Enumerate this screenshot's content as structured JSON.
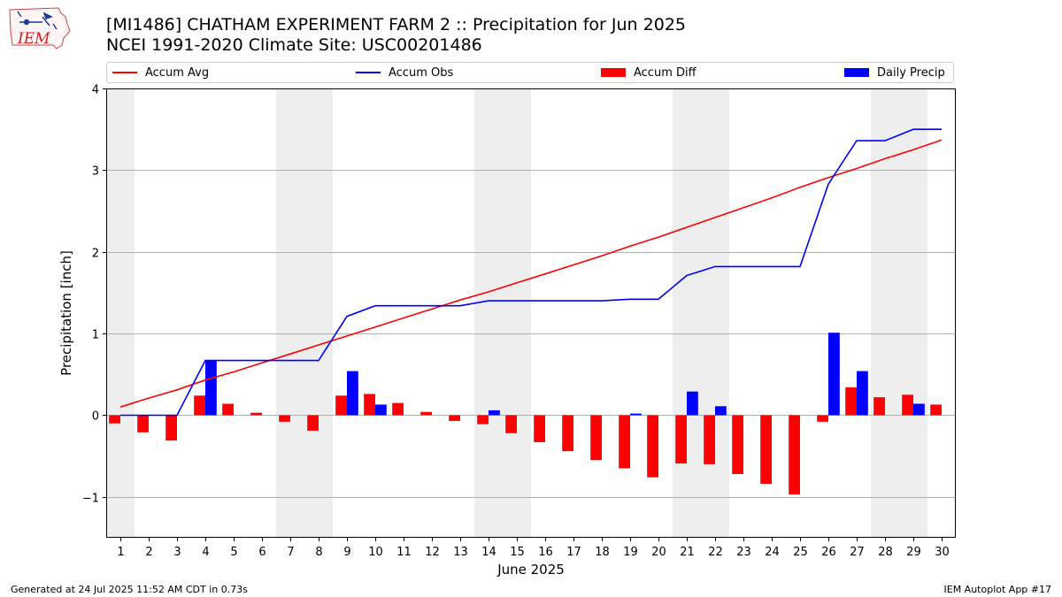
{
  "header": {
    "logo_text": "IEM",
    "title": "[MI1486] CHATHAM EXPERIMENT FARM 2 :: Precipitation for Jun 2025",
    "subtitle": "NCEI 1991-2020 Climate Site: USC00201486"
  },
  "legend": {
    "placement": "top",
    "items": [
      {
        "label": "Accum Avg",
        "kind": "line",
        "color": "#ff0000"
      },
      {
        "label": "Accum Obs",
        "kind": "line",
        "color": "#0000ff"
      },
      {
        "label": "Accum Diff",
        "kind": "bar",
        "color": "#ff0000"
      },
      {
        "label": "Daily Precip",
        "kind": "bar",
        "color": "#0000ff"
      }
    ]
  },
  "footer": {
    "left": "Generated at 24 Jul 2025 11:52 AM CDT in 0.73s",
    "right": "IEM Autoplot App #17"
  },
  "chart_data": {
    "type": "bar",
    "title": "[MI1486] CHATHAM EXPERIMENT FARM 2 :: Precipitation for Jun 2025",
    "subtitle": "NCEI 1991-2020 Climate Site: USC00201486",
    "xlabel": "June 2025",
    "ylabel": "Precipitation [inch]",
    "xlim": [
      0.5,
      30.5
    ],
    "ylim": [
      -1.5,
      4
    ],
    "yticks": [
      -1,
      0,
      1,
      2,
      3,
      4
    ],
    "ytick_labels": [
      "−1",
      "0",
      "1",
      "2",
      "3",
      "4"
    ],
    "grid": "y",
    "weekend_shading": {
      "color": "#eeeeee",
      "ranges": [
        [
          0.5,
          1.5
        ],
        [
          6.5,
          8.5
        ],
        [
          13.5,
          15.5
        ],
        [
          20.5,
          22.5
        ],
        [
          27.5,
          29.5
        ]
      ]
    },
    "days": [
      1,
      2,
      3,
      4,
      5,
      6,
      7,
      8,
      9,
      10,
      11,
      12,
      13,
      14,
      15,
      16,
      17,
      18,
      19,
      20,
      21,
      22,
      23,
      24,
      25,
      26,
      27,
      28,
      29,
      30
    ],
    "series": [
      {
        "name": "Accum Avg",
        "kind": "line",
        "color": "#ff0000",
        "values": [
          0.1,
          0.21,
          0.31,
          0.43,
          0.53,
          0.64,
          0.75,
          0.86,
          0.97,
          1.08,
          1.19,
          1.3,
          1.41,
          1.51,
          1.62,
          1.73,
          1.84,
          1.95,
          2.07,
          2.18,
          2.3,
          2.42,
          2.54,
          2.66,
          2.79,
          2.91,
          3.02,
          3.14,
          3.25,
          3.37
        ]
      },
      {
        "name": "Accum Obs",
        "kind": "line",
        "color": "#0000ff",
        "values": [
          0.0,
          0.0,
          0.0,
          0.67,
          0.67,
          0.67,
          0.67,
          0.67,
          1.21,
          1.34,
          1.34,
          1.34,
          1.34,
          1.4,
          1.4,
          1.4,
          1.4,
          1.4,
          1.42,
          1.42,
          1.71,
          1.82,
          1.82,
          1.82,
          1.82,
          2.83,
          3.36,
          3.36,
          3.5,
          3.5
        ]
      },
      {
        "name": "Accum Diff",
        "kind": "bar",
        "color": "#ff0000",
        "values": [
          -0.1,
          -0.21,
          -0.31,
          0.24,
          0.14,
          0.03,
          -0.08,
          -0.19,
          0.24,
          0.26,
          0.15,
          0.04,
          -0.07,
          -0.11,
          -0.22,
          -0.33,
          -0.44,
          -0.55,
          -0.65,
          -0.76,
          -0.59,
          -0.6,
          -0.72,
          -0.84,
          -0.97,
          -0.08,
          0.34,
          0.22,
          0.25,
          0.13
        ]
      },
      {
        "name": "Daily Precip",
        "kind": "bar",
        "color": "#0000ff",
        "values": [
          0.0,
          0.0,
          0.0,
          0.67,
          0.0,
          0.0,
          0.0,
          0.0,
          0.54,
          0.13,
          0.0,
          0.0,
          0.0,
          0.06,
          0.0,
          0.0,
          0.0,
          0.0,
          0.02,
          0.0,
          0.29,
          0.11,
          0.0,
          0.0,
          0.0,
          1.01,
          0.54,
          0.0,
          0.14,
          0.0
        ]
      }
    ]
  }
}
